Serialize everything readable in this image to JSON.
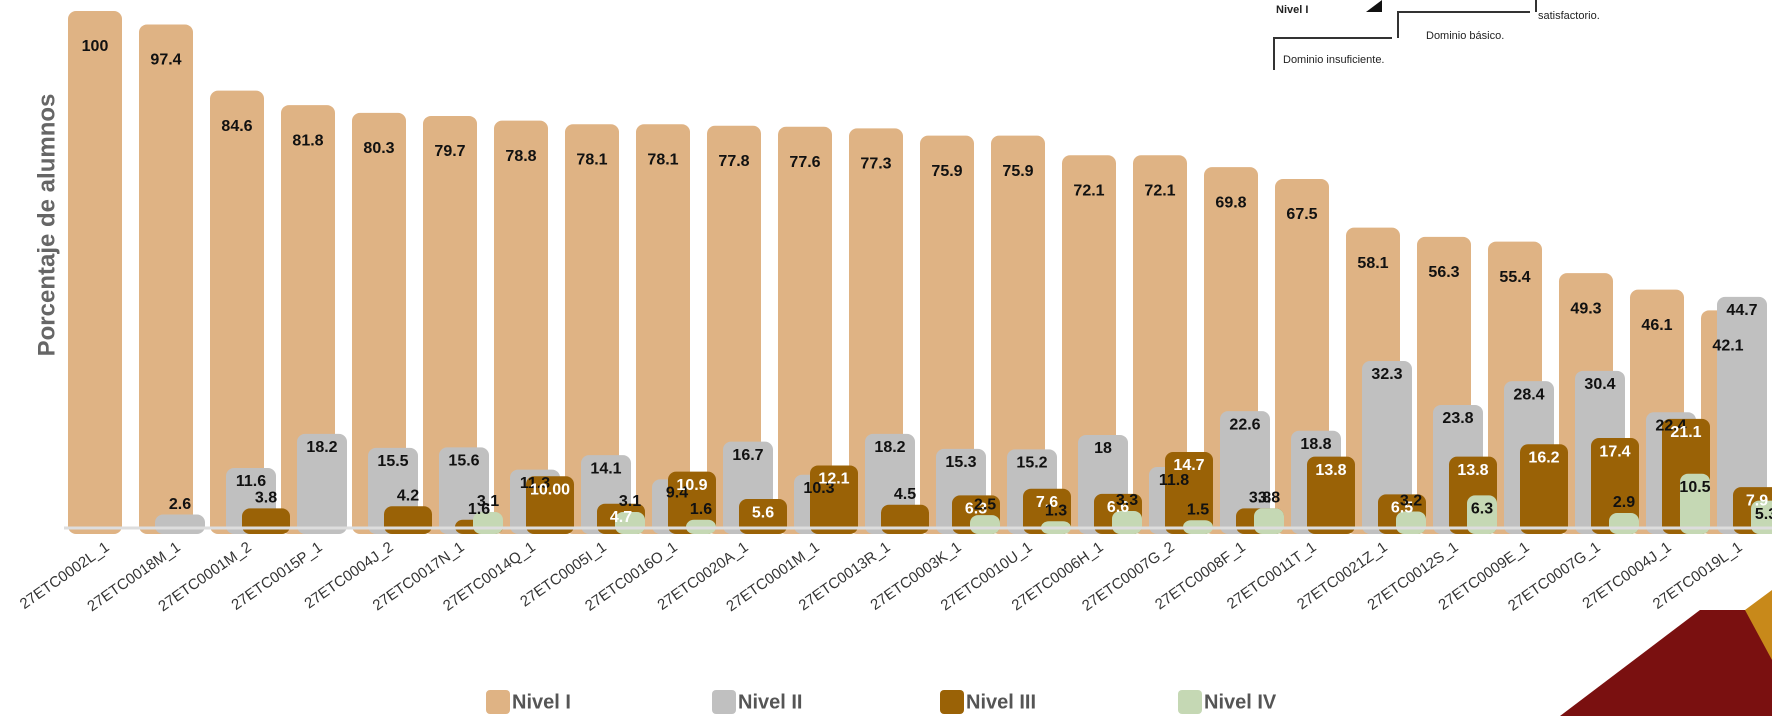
{
  "chart_data": {
    "type": "bar",
    "y_label": "Porcentaje de alumnos",
    "categories": [
      "27ETC0002L_1",
      "27ETC0018M_1",
      "27ETC0001M_2",
      "27ETC0015P_1",
      "27ETC0004J_2",
      "27ETC0017N_1",
      "27ETC0014Q_1",
      "27ETC0005I_1",
      "27ETC0016O_1",
      "27ETC0020A_1",
      "27ETC0001M_1",
      "27ETC0013R_1",
      "27ETC0003K_1",
      "27ETC0010U_1",
      "27ETC0006H_1",
      "27ETC0007G_2",
      "27ETC0008F_1",
      "27ETC0011T_1",
      "27ETC0021Z_1",
      "27ETC0012S_1",
      "27ETC0009E_1",
      "27ETC0007G_1",
      "27ETC0004J_1",
      "27ETC0019L_1"
    ],
    "series": [
      {
        "name": "Nivel I",
        "color": "#dfb384",
        "label_color": "#111111",
        "values": [
          100,
          97.4,
          84.6,
          81.8,
          80.3,
          79.7,
          78.8,
          78.1,
          78.1,
          77.8,
          77.6,
          77.3,
          75.9,
          75.9,
          72.1,
          72.1,
          69.8,
          67.5,
          58.1,
          56.3,
          55.4,
          49.3,
          46.1,
          42.1
        ]
      },
      {
        "name": "Nivel II",
        "color": "#c0c0c0",
        "label_color": "#111111",
        "values": [
          null,
          2.6,
          11.6,
          18.2,
          15.5,
          15.6,
          11.3,
          14.1,
          9.4,
          16.7,
          10.3,
          18.2,
          15.3,
          15.2,
          18,
          11.8,
          22.6,
          18.8,
          32.3,
          23.8,
          28.4,
          30.4,
          22.4,
          44.7
        ]
      },
      {
        "name": "Nivel III",
        "color": "#9a6206",
        "label_color": "#ffffff",
        "values": [
          null,
          null,
          3.8,
          null,
          4.2,
          1.6,
          10,
          4.7,
          10.9,
          5.6,
          12.1,
          4.5,
          6.3,
          7.6,
          6.6,
          14.7,
          3.8,
          13.8,
          6.5,
          13.8,
          16.2,
          17.4,
          21.1,
          7.9
        ],
        "value_labels": [
          null,
          null,
          "3.8",
          null,
          "4.2",
          "1.6",
          "10.00",
          "4.7",
          "10.9",
          "5.6",
          "12.1",
          "4.5",
          "6.3",
          "7.6",
          "6.6",
          "14.7",
          "3.8",
          "13.8",
          "6.5",
          "13.8",
          "16.2",
          "17.4",
          "21.1",
          "7.9"
        ]
      },
      {
        "name": "Nivel IV",
        "color": "#c5d8b4",
        "label_color": "#111111",
        "values": [
          null,
          null,
          null,
          null,
          null,
          3.1,
          null,
          3.1,
          1.6,
          null,
          null,
          null,
          2.5,
          1.3,
          3.3,
          1.5,
          3.8,
          null,
          3.2,
          6.3,
          null,
          2.9,
          10.5,
          5.3
        ]
      }
    ],
    "ylim": [
      0,
      100
    ],
    "annotations": [
      "Nivel I",
      "Dominio básico.",
      "Dominio insuficiente.",
      "satisfactorio."
    ]
  }
}
